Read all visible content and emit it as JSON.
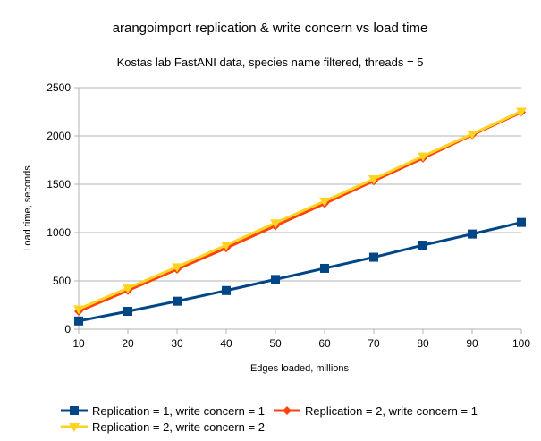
{
  "chart_data": {
    "type": "line",
    "title": "arangoimport replication & write concern vs load time",
    "subtitle": "Kostas lab FastANI data, species name filtered, threads = 5",
    "xlabel": "Edges loaded, millions",
    "ylabel": "Load time, seconds",
    "x": [
      10,
      20,
      30,
      40,
      50,
      60,
      70,
      80,
      90,
      100
    ],
    "xlim": [
      10,
      100
    ],
    "ylim": [
      0,
      2500
    ],
    "yticks": [
      0,
      500,
      1000,
      1500,
      2000,
      2500
    ],
    "grid": "horizontal",
    "legend_position": "bottom",
    "series": [
      {
        "name": "Replication = 1, write concern = 1",
        "color": "#004586",
        "marker": "square",
        "values": [
          85,
          185,
          290,
          400,
          515,
          630,
          745,
          870,
          985,
          1105
        ]
      },
      {
        "name": "Replication = 2, write concern = 1",
        "color": "#ff420e",
        "marker": "diamond",
        "values": [
          185,
          400,
          620,
          840,
          1070,
          1300,
          1535,
          1770,
          2010,
          2245
        ]
      },
      {
        "name": "Replication = 2, write concern = 2",
        "color": "#ffd320",
        "marker": "triangle-down",
        "values": [
          210,
          425,
          645,
          870,
          1100,
          1325,
          1555,
          1790,
          2020,
          2255
        ]
      }
    ]
  }
}
